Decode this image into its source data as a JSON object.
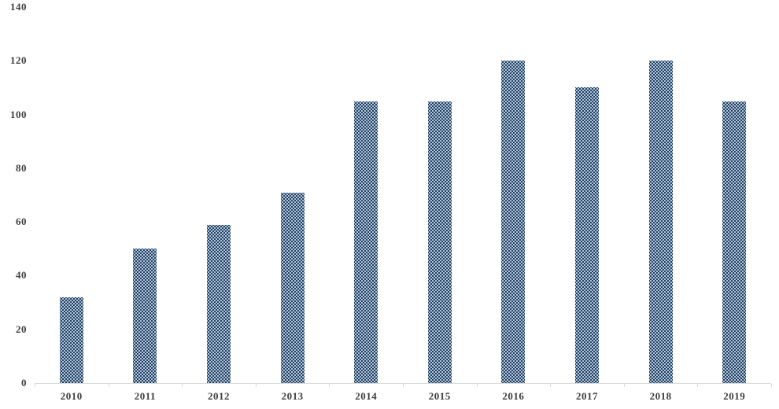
{
  "chart_data": {
    "type": "bar",
    "categories": [
      "2010",
      "2011",
      "2012",
      "2013",
      "2014",
      "2015",
      "2016",
      "2017",
      "2018",
      "2019"
    ],
    "values": [
      32,
      50,
      59,
      71,
      105,
      105,
      120,
      110,
      120,
      105
    ],
    "title": "",
    "xlabel": "",
    "ylabel": "",
    "ylim": [
      0,
      140
    ],
    "yticks": [
      0,
      20,
      40,
      60,
      80,
      100,
      120,
      140
    ],
    "grid": false,
    "legend": false,
    "colors": {
      "bar_base": "#b1c6dc",
      "bar_dot": "#203d5d",
      "axis_line": "#d9d9d9",
      "tick": "#d9d9d9",
      "label": "#404040",
      "background": "#ffffff"
    }
  }
}
